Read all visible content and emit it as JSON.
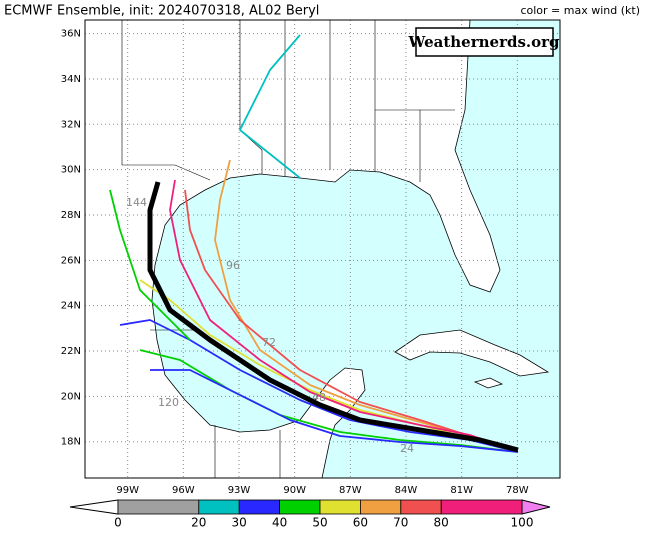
{
  "header": {
    "title": "ECMWF Ensemble, init: 2024070318, AL02 Beryl",
    "legend_title": "color = max wind (kt)"
  },
  "watermark": "Weathernerds.org",
  "map": {
    "lonlim": [
      -101.3,
      -75.7
    ],
    "latlim": [
      16.4,
      36.6
    ],
    "lat_ticks": [
      {
        "value": 36,
        "label": "36N"
      },
      {
        "value": 34,
        "label": "34N"
      },
      {
        "value": 32,
        "label": "32N"
      },
      {
        "value": 30,
        "label": "30N"
      },
      {
        "value": 28,
        "label": "28N"
      },
      {
        "value": 26,
        "label": "26N"
      },
      {
        "value": 24,
        "label": "24N"
      },
      {
        "value": 22,
        "label": "22N"
      },
      {
        "value": 20,
        "label": "20N"
      },
      {
        "value": 18,
        "label": "18N"
      }
    ],
    "lon_ticks": [
      {
        "value": -99,
        "label": "99W"
      },
      {
        "value": -96,
        "label": "96W"
      },
      {
        "value": -93,
        "label": "93W"
      },
      {
        "value": -90,
        "label": "90W"
      },
      {
        "value": -87,
        "label": "87W"
      },
      {
        "value": -84,
        "label": "84W"
      },
      {
        "value": -81,
        "label": "81W"
      },
      {
        "value": -78,
        "label": "78W"
      }
    ],
    "hour_labels": [
      "144",
      "120",
      "96",
      "72",
      "48",
      "24"
    ]
  },
  "colorbar": {
    "ticks": [
      0,
      20,
      30,
      40,
      50,
      60,
      70,
      80,
      100
    ],
    "colors": [
      "#a0a0a0",
      "#00c0c0",
      "#2828ff",
      "#00d000",
      "#e0e030",
      "#f0a040",
      "#f05050",
      "#f0207a"
    ],
    "under_color": "#ffffff",
    "over_color": "#f080f0"
  }
}
